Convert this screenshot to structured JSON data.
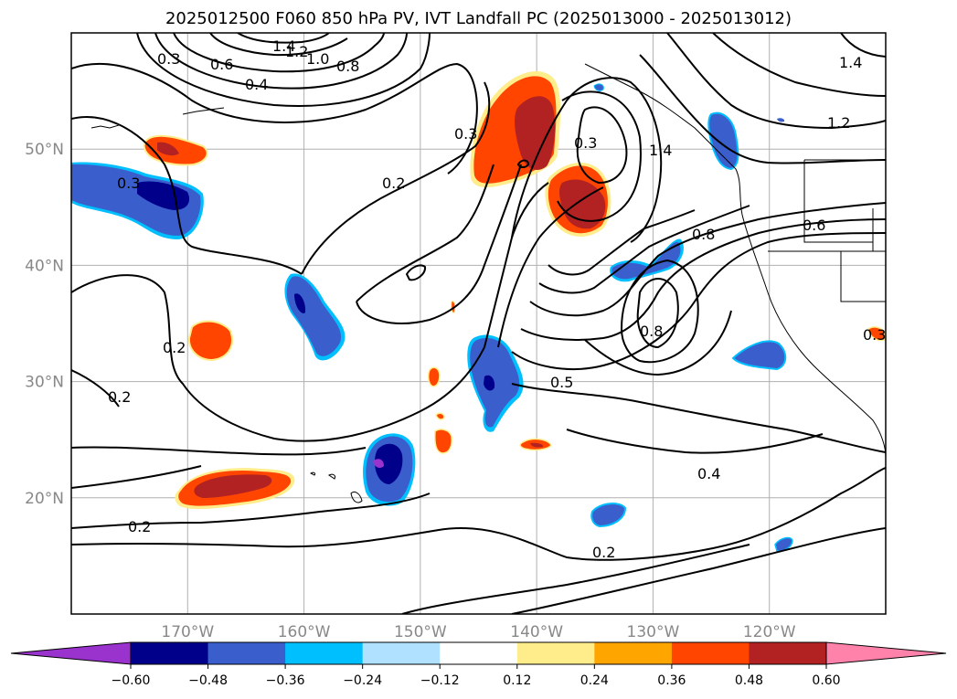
{
  "title": "2025012500 F060 850 hPa PV, IVT Landfall PC (2025013000 - 2025013012)",
  "map": {
    "lon_range": [
      -180,
      -110
    ],
    "lat_range": [
      10,
      60
    ],
    "lon_ticks": [
      {
        "value": -170,
        "label": "170°W"
      },
      {
        "value": -160,
        "label": "160°W"
      },
      {
        "value": -150,
        "label": "150°W"
      },
      {
        "value": -140,
        "label": "140°W"
      },
      {
        "value": -130,
        "label": "130°W"
      },
      {
        "value": -120,
        "label": "120°W"
      }
    ],
    "lat_ticks": [
      {
        "value": 20,
        "label": "20°N"
      },
      {
        "value": 30,
        "label": "30°N"
      },
      {
        "value": 40,
        "label": "40°N"
      },
      {
        "value": 50,
        "label": "50°N"
      }
    ],
    "contour_labels": [
      "0.3",
      "0.6",
      "0.4",
      "1.4",
      "1.2",
      "1.0",
      "0.8",
      "0.3",
      "0.2",
      "0.3",
      "0.3",
      "1.4",
      "0.8",
      "0.6",
      "0.8",
      "0.2",
      "0.2",
      "0.5",
      "0.4",
      "0.2",
      "0.2",
      "1.2",
      "1.4",
      "0.3"
    ]
  },
  "colorbar": {
    "colors": [
      "#9a32cd",
      "#00008b",
      "#3a5fcd",
      "#00bfff",
      "#b0e2ff",
      "#ffffff",
      "#ffec8b",
      "#ffa500",
      "#ff4500",
      "#b22222",
      "#ff82ab"
    ],
    "ticks": [
      "−0.60",
      "−0.48",
      "−0.36",
      "−0.24",
      "−0.12",
      "0.12",
      "0.24",
      "0.36",
      "0.48",
      "0.60"
    ]
  },
  "colors": {
    "pos_light": "#ffec8b",
    "pos_mid": "#ff4500",
    "pos_dark": "#b22222",
    "neg_light": "#00bfff",
    "neg_mid": "#3a5fcd",
    "neg_dark": "#00008b",
    "neg_extreme": "#9a32cd"
  }
}
